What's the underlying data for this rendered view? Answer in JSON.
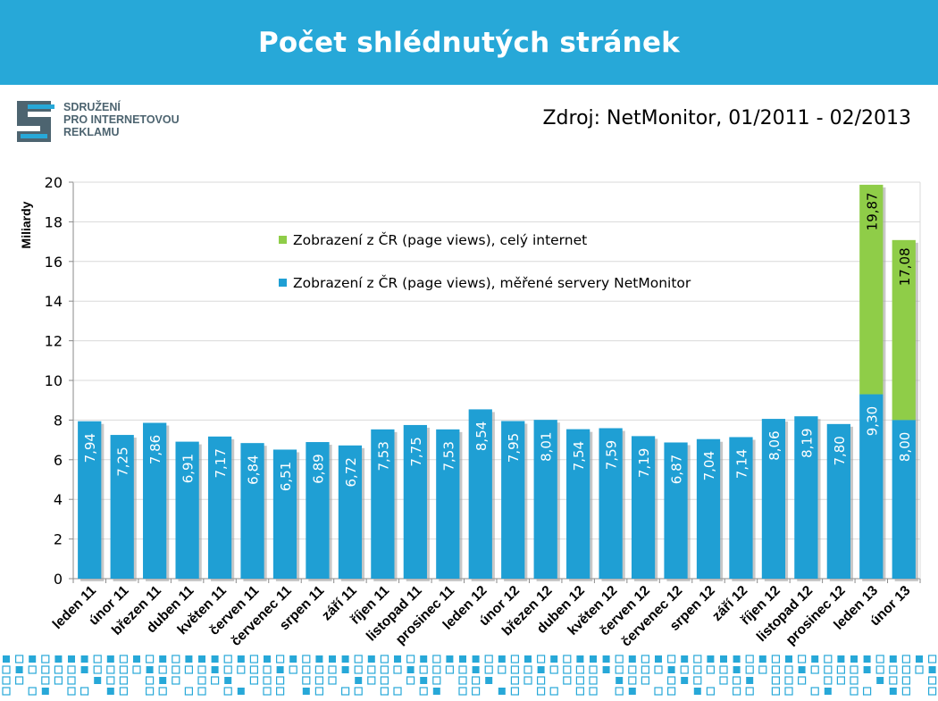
{
  "header": {
    "title": "Počet shlédnutých stránek"
  },
  "logo": {
    "line1": "SDRUŽENÍ",
    "line2": "PRO INTERNETOVOU",
    "line3": "REKLAMU"
  },
  "source": "Zdroj: NetMonitor, 01/2011 - 02/2013",
  "colors": {
    "banner": "#27a8d8",
    "bar_blue": "#1f9fd4",
    "bar_green": "#8fcd48",
    "dots": "#27a8d8",
    "logo_gray": "#4d6470"
  },
  "chart_data": {
    "type": "bar",
    "stacked": true,
    "ylabel": "Miliardy",
    "ylim": [
      0,
      20
    ],
    "yticks": [
      0,
      2,
      4,
      6,
      8,
      10,
      12,
      14,
      16,
      18,
      20
    ],
    "grid": true,
    "legend_position": "upper-left-inside",
    "categories": [
      "leden 11",
      "únor 11",
      "březen 11",
      "duben 11",
      "květen 11",
      "červen 11",
      "červenec 11",
      "srpen 11",
      "září 11",
      "říjen 11",
      "listopad 11",
      "prosinec 11",
      "leden 12",
      "únor 12",
      "březen 12",
      "duben 12",
      "květen 12",
      "červen 12",
      "červenec 12",
      "srpen 12",
      "září 12",
      "říjen 12",
      "listopad 12",
      "prosinec 12",
      "leden 13",
      "únor 13"
    ],
    "series": [
      {
        "name": "Zobrazení z ČR (page views), měřené servery NetMonitor",
        "color": "#1f9fd4",
        "values": [
          7.94,
          7.25,
          7.86,
          6.91,
          7.17,
          6.84,
          6.51,
          6.89,
          6.72,
          7.53,
          7.75,
          7.53,
          8.54,
          7.95,
          8.01,
          7.54,
          7.59,
          7.19,
          6.87,
          7.04,
          7.14,
          8.06,
          8.19,
          7.8,
          9.3,
          8.0
        ],
        "labels": [
          "7,94",
          "7,25",
          "7,86",
          "6,91",
          "7,17",
          "6,84",
          "6,51",
          "6,89",
          "6,72",
          "7,53",
          "7,75",
          "7,53",
          "8,54",
          "7,95",
          "8,01",
          "7,54",
          "7,59",
          "7,19",
          "6,87",
          "7,04",
          "7,14",
          "8,06",
          "8,19",
          "7,80",
          "9,30",
          "8,00"
        ]
      },
      {
        "name": "Zobrazení z ČR (page views), celý internet",
        "color": "#8fcd48",
        "totals": [
          null,
          null,
          null,
          null,
          null,
          null,
          null,
          null,
          null,
          null,
          null,
          null,
          null,
          null,
          null,
          null,
          null,
          null,
          null,
          null,
          null,
          null,
          null,
          null,
          19.87,
          17.08
        ],
        "labels": [
          null,
          null,
          null,
          null,
          null,
          null,
          null,
          null,
          null,
          null,
          null,
          null,
          null,
          null,
          null,
          null,
          null,
          null,
          null,
          null,
          null,
          null,
          null,
          null,
          "19,87",
          "17,08"
        ]
      }
    ]
  }
}
